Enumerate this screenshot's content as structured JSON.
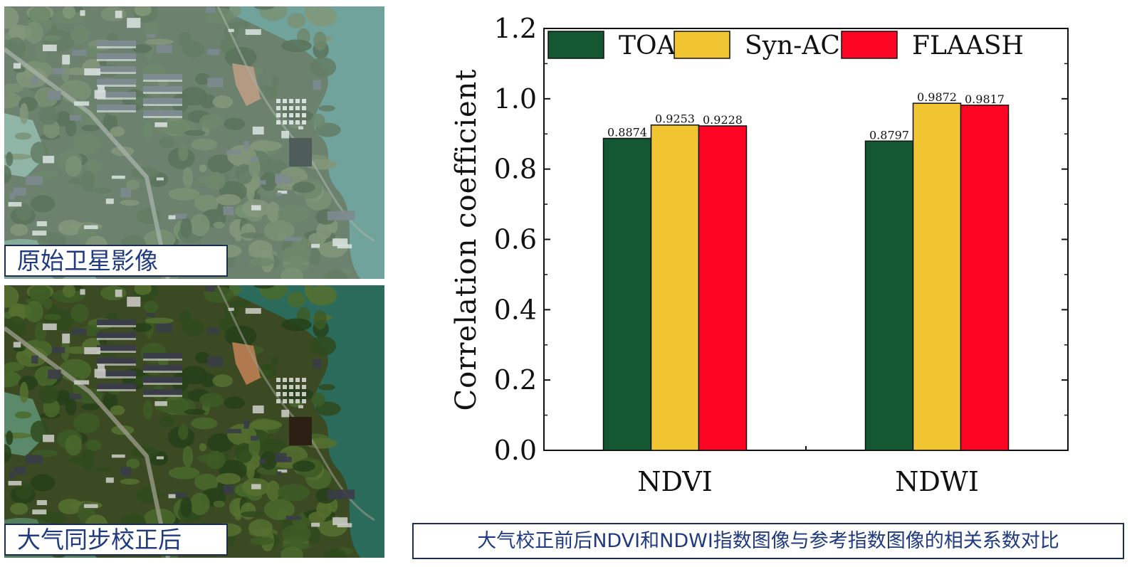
{
  "images": {
    "top": {
      "caption": "原始卫星影像",
      "style": "hazy"
    },
    "bottom": {
      "caption": "大气同步校正后",
      "style": "corrected"
    }
  },
  "bottom_caption": "大气校正前后NDVI和NDWI指数图像与参考指数图像的相关系数对比",
  "chart_data": {
    "type": "bar",
    "title": "",
    "xlabel": "",
    "ylabel": "Correlation coefficient",
    "ylim": [
      0,
      1.2
    ],
    "yticks": [
      "0.0",
      "0.2",
      "0.4",
      "0.6",
      "0.8",
      "1.0",
      "1.2"
    ],
    "categories": [
      "NDVI",
      "NDWI"
    ],
    "series": [
      {
        "name": "TOA",
        "color": "#135832",
        "values": [
          0.8874,
          0.8797
        ],
        "labels": [
          "0.8874",
          "0.8797"
        ]
      },
      {
        "name": "Syn-AC",
        "color": "#f0c531",
        "values": [
          0.9253,
          0.9872
        ],
        "labels": [
          "0.9253",
          "0.9872"
        ]
      },
      {
        "name": "FLAASH",
        "color": "#fd0623",
        "values": [
          0.9228,
          0.9817
        ],
        "labels": [
          "0.9228",
          "0.9817"
        ]
      }
    ],
    "legend": {
      "position": "top-inside",
      "columns": 3
    },
    "grid": false
  }
}
